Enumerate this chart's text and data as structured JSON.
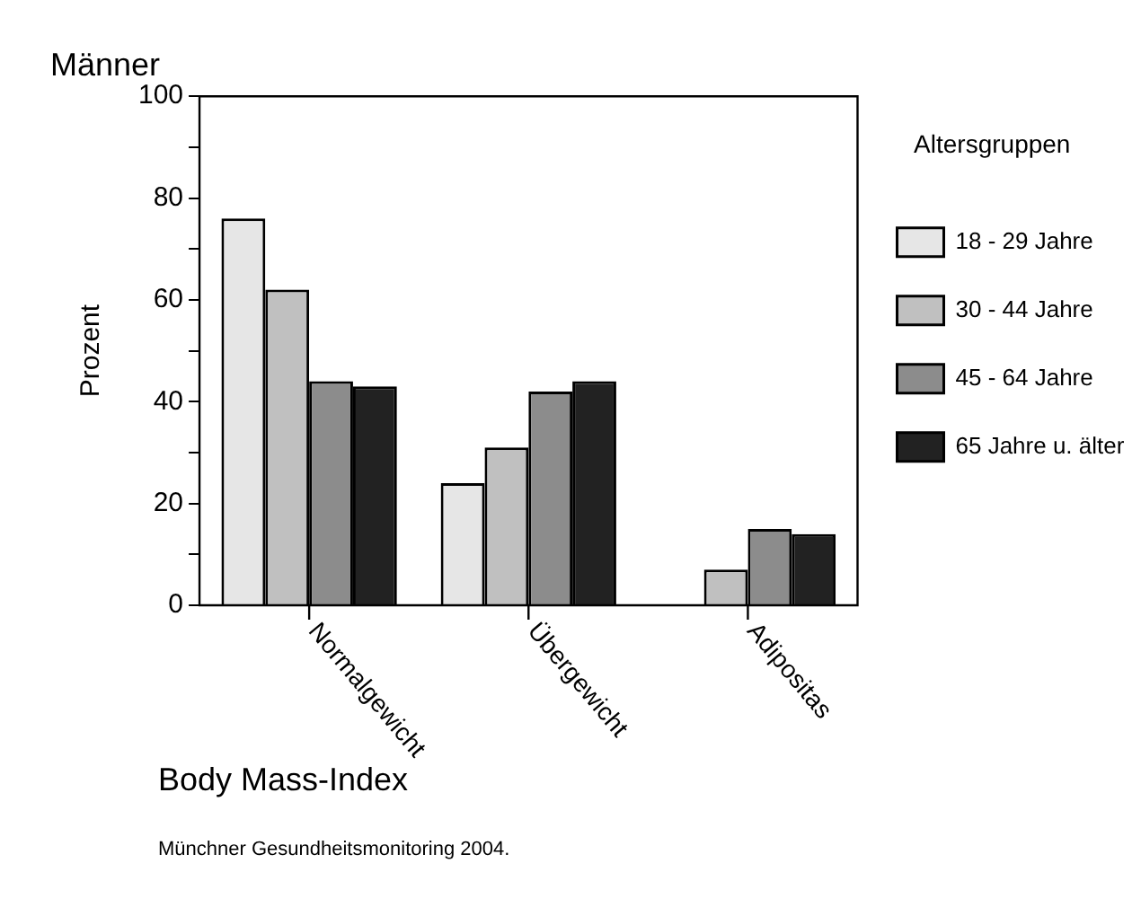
{
  "chart_data": {
    "type": "bar",
    "title": "Männer",
    "xlabel": "Body Mass-Index",
    "ylabel": "Prozent",
    "legend_title": "Altersgruppen",
    "categories": [
      "Normalgewicht",
      "Übergewicht",
      "Adipositas"
    ],
    "series": [
      {
        "name": "18 - 29 Jahre",
        "color": "#e6e6e6",
        "values": [
          76,
          24,
          null
        ]
      },
      {
        "name": "30 - 44 Jahre",
        "color": "#c0c0c0",
        "values": [
          62,
          31,
          7
        ]
      },
      {
        "name": "45 - 64 Jahre",
        "color": "#8c8c8c",
        "values": [
          44,
          42,
          15
        ]
      },
      {
        "name": "65 Jahre u. älter",
        "color": "#222222",
        "values": [
          43,
          44,
          14
        ]
      }
    ],
    "ylim": [
      0,
      100
    ],
    "yticks": [
      0,
      {
        "value": 10,
        "label": null
      },
      20,
      {
        "value": 30,
        "label": null
      },
      40,
      {
        "value": 50,
        "label": null
      },
      60,
      {
        "value": 70,
        "label": null
      },
      80,
      {
        "value": 90,
        "label": null
      },
      100
    ],
    "grid": false,
    "legend": "right",
    "annotations": [
      "Münchner Gesundheitsmonitoring 2004."
    ]
  }
}
